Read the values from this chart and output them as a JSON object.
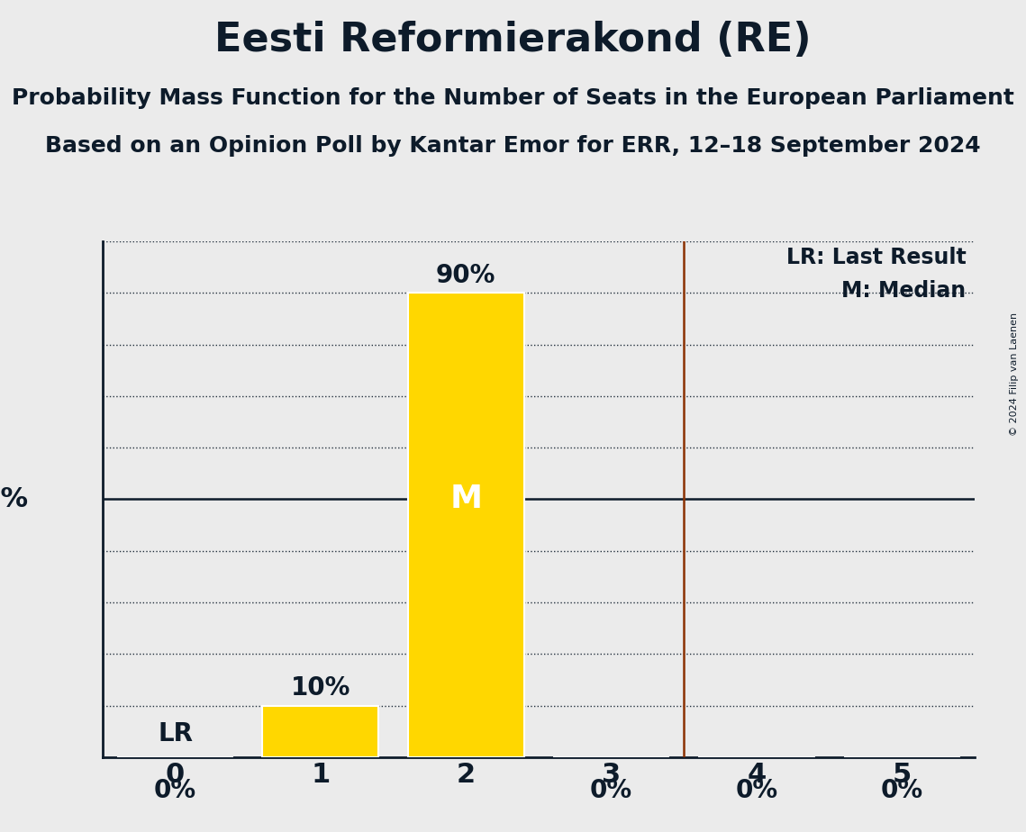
{
  "title": "Eesti Reformierakond (RE)",
  "subtitle1": "Probability Mass Function for the Number of Seats in the European Parliament",
  "subtitle2": "Based on an Opinion Poll by Kantar Emor for ERR, 12–18 September 2024",
  "copyright": "© 2024 Filip van Laenen",
  "seats": [
    0,
    1,
    2,
    3,
    4,
    5
  ],
  "probabilities": [
    0.0,
    0.1,
    0.9,
    0.0,
    0.0,
    0.0
  ],
  "bar_color": "#FFD700",
  "last_result": 3.5,
  "median": 2,
  "lr_label": "LR",
  "lr_seat": 0,
  "median_label": "M",
  "ylim_max": 1.0,
  "background_color": "#EBEBEB",
  "bar_edge_color": "#FFFFFF",
  "title_color": "#0D1B2A",
  "axis_color": "#0D1B2A",
  "lr_line_color": "#8B3103",
  "fifty_line_color": "#0D1B2A",
  "legend_lr": "LR: Last Result",
  "legend_m": "M: Median",
  "grid_color": "#0D1B2A",
  "title_fontsize": 32,
  "subtitle_fontsize": 18,
  "tick_fontsize": 22,
  "label_fontsize": 22,
  "legend_fontsize": 17,
  "pct_fontsize": 20,
  "median_label_fontsize": 26
}
